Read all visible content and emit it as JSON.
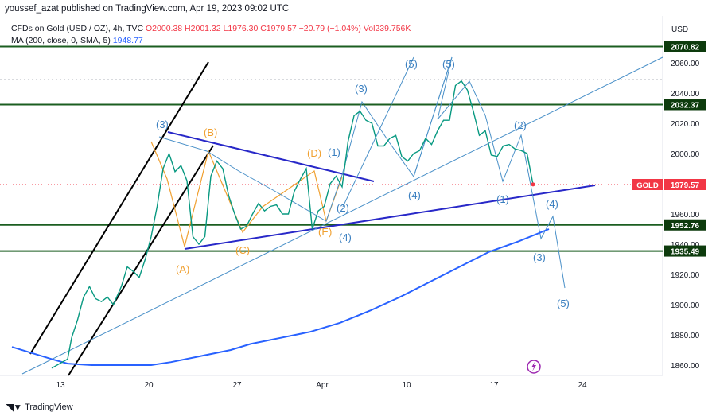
{
  "header": {
    "publisher": "youssef_azat published on TradingView.com, Apr 19, 2023 09:02 UTC"
  },
  "legend": {
    "symbol": "CFDs on Gold (USD / OZ), 4h, TVC",
    "ohlc": "O2000.38 H2001.32 L1976.30 C1979.57 −20.79 (−1.04%) Vol239.756K",
    "ma_label": "MA (200, close, 0, SMA, 5)",
    "ma_value": "1948.77"
  },
  "footer": {
    "brand": "TradingView"
  },
  "colors": {
    "up": "#089981",
    "down": "#f23645",
    "ma": "#2962ff",
    "hline": "#1b5e20",
    "wave_blue": "#4a90c8",
    "wave_orange": "#f0a030",
    "trend_black": "#000000",
    "trend_blue": "#2828c8"
  },
  "chart_data": {
    "type": "line",
    "title": "",
    "currency": "USD",
    "symbol_tag": "GOLD",
    "last_price": "1979.57",
    "x_ticks": [
      "13",
      "20",
      "27",
      "Apr",
      "10",
      "17",
      "24"
    ],
    "ylim": [
      1850,
      2080
    ],
    "y_ticks": [
      "1860.00",
      "1880.00",
      "1900.00",
      "1920.00",
      "1940.00",
      "1960.00",
      "2000.00",
      "2020.00",
      "2040.00",
      "2060.00"
    ],
    "levels": [
      {
        "label": "2070.82",
        "value": 2070.82
      },
      {
        "label": "2032.37",
        "value": 2032.37
      },
      {
        "label": "1952.76",
        "value": 1952.76
      },
      {
        "label": "1935.49",
        "value": 1935.49
      }
    ],
    "price_path": [
      [
        0,
        1858
      ],
      [
        8,
        1864
      ],
      [
        10,
        1878
      ],
      [
        13,
        1890
      ],
      [
        16,
        1905
      ],
      [
        19,
        1912
      ],
      [
        22,
        1904
      ],
      [
        25,
        1902
      ],
      [
        28,
        1905
      ],
      [
        31,
        1900
      ],
      [
        35,
        1912
      ],
      [
        38,
        1925
      ],
      [
        41,
        1922
      ],
      [
        44,
        1918
      ],
      [
        47,
        1930
      ],
      [
        50,
        1945
      ],
      [
        53,
        1965
      ],
      [
        56,
        1990
      ],
      [
        59,
        2000
      ],
      [
        62,
        1988
      ],
      [
        65,
        1992
      ],
      [
        68,
        1982
      ],
      [
        71,
        1945
      ],
      [
        74,
        1940
      ],
      [
        77,
        1945
      ],
      [
        80,
        1985
      ],
      [
        83,
        1995
      ],
      [
        86,
        1990
      ],
      [
        89,
        1972
      ],
      [
        92,
        1960
      ],
      [
        95,
        1950
      ],
      [
        98,
        1952
      ],
      [
        101,
        1960
      ],
      [
        104,
        1967
      ],
      [
        107,
        1962
      ],
      [
        110,
        1965
      ],
      [
        113,
        1966
      ],
      [
        116,
        1960
      ],
      [
        119,
        1960
      ],
      [
        122,
        1975
      ],
      [
        125,
        1983
      ],
      [
        128,
        1990
      ],
      [
        131,
        1950
      ],
      [
        134,
        1962
      ],
      [
        137,
        1965
      ],
      [
        140,
        1980
      ],
      [
        143,
        1985
      ],
      [
        146,
        1978
      ],
      [
        149,
        2008
      ],
      [
        152,
        2025
      ],
      [
        155,
        2028
      ],
      [
        158,
        2022
      ],
      [
        161,
        2020
      ],
      [
        164,
        2005
      ],
      [
        167,
        2005
      ],
      [
        170,
        2010
      ],
      [
        173,
        2012
      ],
      [
        176,
        1998
      ],
      [
        179,
        1995
      ],
      [
        182,
        2000
      ],
      [
        185,
        2002
      ],
      [
        188,
        2010
      ],
      [
        191,
        2006
      ],
      [
        194,
        2015
      ],
      [
        197,
        2022
      ],
      [
        200,
        2022
      ],
      [
        203,
        2045
      ],
      [
        206,
        2048
      ],
      [
        209,
        2042
      ],
      [
        212,
        2028
      ],
      [
        215,
        2012
      ],
      [
        218,
        2015
      ],
      [
        221,
        1999
      ],
      [
        224,
        1998
      ],
      [
        227,
        2005
      ],
      [
        230,
        2006
      ],
      [
        233,
        2003
      ],
      [
        236,
        2002
      ],
      [
        239,
        2000
      ],
      [
        242,
        1979.57
      ]
    ],
    "ma_path": [
      [
        -20,
        1872
      ],
      [
        -10,
        1868
      ],
      [
        0,
        1864
      ],
      [
        8,
        1861
      ],
      [
        20,
        1860
      ],
      [
        35,
        1860
      ],
      [
        50,
        1860
      ],
      [
        60,
        1862
      ],
      [
        75,
        1866
      ],
      [
        90,
        1870
      ],
      [
        100,
        1874
      ],
      [
        115,
        1878
      ],
      [
        130,
        1882
      ],
      [
        145,
        1888
      ],
      [
        160,
        1896
      ],
      [
        175,
        1905
      ],
      [
        190,
        1915
      ],
      [
        205,
        1925
      ],
      [
        220,
        1935
      ],
      [
        235,
        1942
      ],
      [
        250,
        1950
      ]
    ],
    "wave_labels_blue": [
      "(3)",
      "(5)",
      "(5)",
      "(3)",
      "(2)",
      "(1)",
      "(2)",
      "(4)",
      "(4)",
      "(1)",
      "(4)",
      "(3)",
      "(5)"
    ],
    "wave_labels_orange": [
      "(B)",
      "(D)",
      "(A)",
      "(C)",
      "(E)"
    ]
  }
}
